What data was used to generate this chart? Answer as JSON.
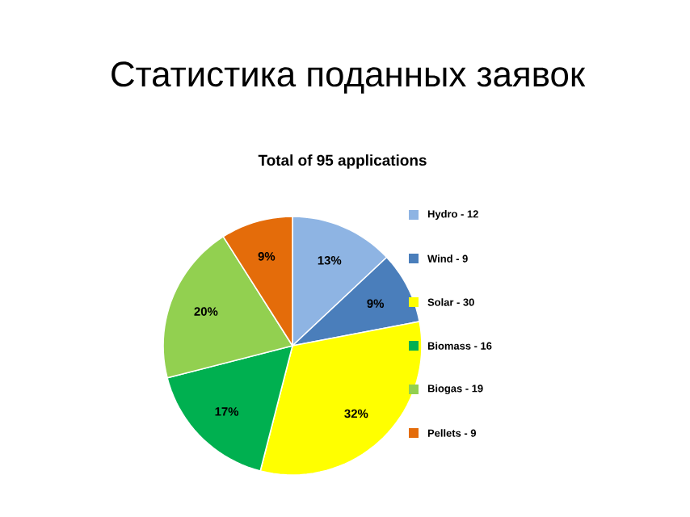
{
  "chart_data": {
    "type": "pie",
    "title": "Статистика поданных заявок",
    "subtitle": "Total of 95 applications",
    "categories": [
      "Hydro - 12",
      "Wind - 9",
      "Solar - 30",
      "Biomass - 16",
      "Biogas - 19",
      "Pellets - 9"
    ],
    "values": [
      13,
      9,
      32,
      17,
      20,
      9
    ],
    "value_labels": [
      "13%",
      "9%",
      "32%",
      "17%",
      "20%",
      "9%"
    ],
    "colors": [
      "#8eb4e3",
      "#4a7ebb",
      "#ffff00",
      "#00b050",
      "#92d050",
      "#e46c0a"
    ],
    "legend": "right"
  }
}
